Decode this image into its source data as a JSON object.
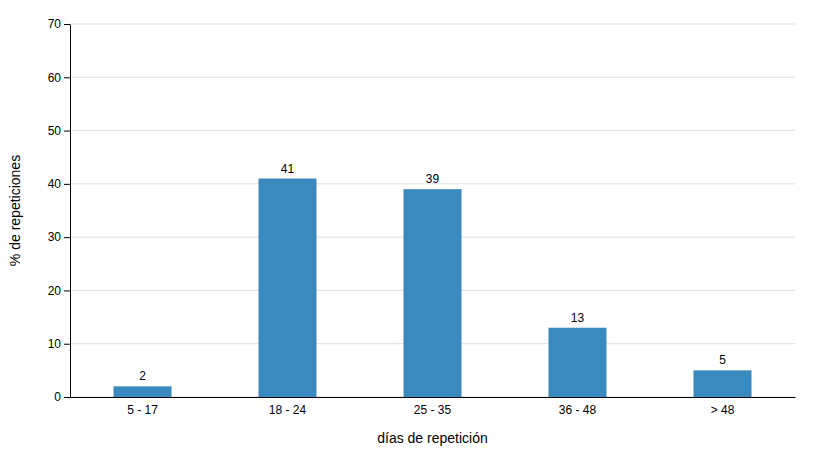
{
  "chart_data": {
    "type": "bar",
    "categories": [
      "5 - 17",
      "18 - 24",
      "25 - 35",
      "36 - 48",
      "> 48"
    ],
    "values": [
      2,
      41,
      39,
      13,
      5
    ],
    "color": "#3b8abf",
    "xlabel": "días de repetición",
    "ylabel": "% de repeticiones",
    "ylim": [
      0,
      70
    ],
    "yticks": [
      0,
      10,
      20,
      30,
      40,
      50,
      60,
      70
    ],
    "grid": true,
    "data_labels": true
  }
}
